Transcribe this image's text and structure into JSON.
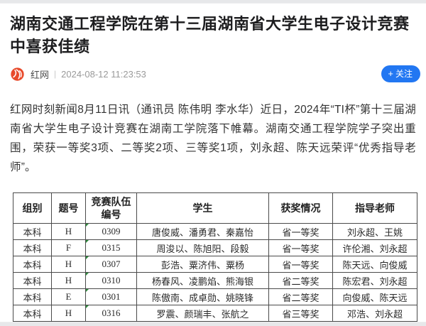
{
  "colors": {
    "accent_blue": "#2277f2",
    "brand_red": "#e84a2b",
    "flag_green": "#2e8b3d"
  },
  "article": {
    "title": "湖南交通工程学院在第十三届湖南省大学生电子设计竞赛中喜获佳绩",
    "source": "红网",
    "separator": "|",
    "timestamp": "2024-08-12 11:23:53",
    "follow": {
      "plus": "+",
      "label": "关注"
    },
    "body": "红网时刻新闻8月11日讯（通讯员 陈伟明 李水华）近日，2024年“TI杯”第十三届湖南省大学生电子设计竞赛在湖南工学院落下帷幕。湖南交通工程学院学子突出重围，荣获一等奖3项、二等奖2项、三等奖1项，刘永超、陈天远荣评“优秀指导老师”。"
  },
  "table": {
    "headers": [
      "组别",
      "题号",
      "竞赛队伍编号",
      "学生",
      "获奖情况",
      "指导老师"
    ],
    "rows": [
      [
        "本科",
        "H",
        "0309",
        "唐俊威、潘勇君、秦嘉怡",
        "省一等奖",
        "刘永超、王姚"
      ],
      [
        "本科",
        "F",
        "0315",
        "周浚以、陈旭阳、段毅",
        "省一等奖",
        "许伦湘、刘永超"
      ],
      [
        "本科",
        "H",
        "0307",
        "彭浩、粟济伟、粟杨",
        "省一等奖",
        "陈天远、向俊威"
      ],
      [
        "本科",
        "H",
        "0310",
        "杨春风、凌鹏焰、熊海银",
        "省二等奖",
        "陈宏君、刘永超"
      ],
      [
        "本科",
        "E",
        "0301",
        "陈傲南、成卓勋、姚晓锋",
        "省二等奖",
        "向俊威、陈天远"
      ],
      [
        "本科",
        "H",
        "0316",
        "罗震、颜瑞丰、张航之",
        "省三等奖",
        "邓浩、刘永超"
      ]
    ]
  }
}
